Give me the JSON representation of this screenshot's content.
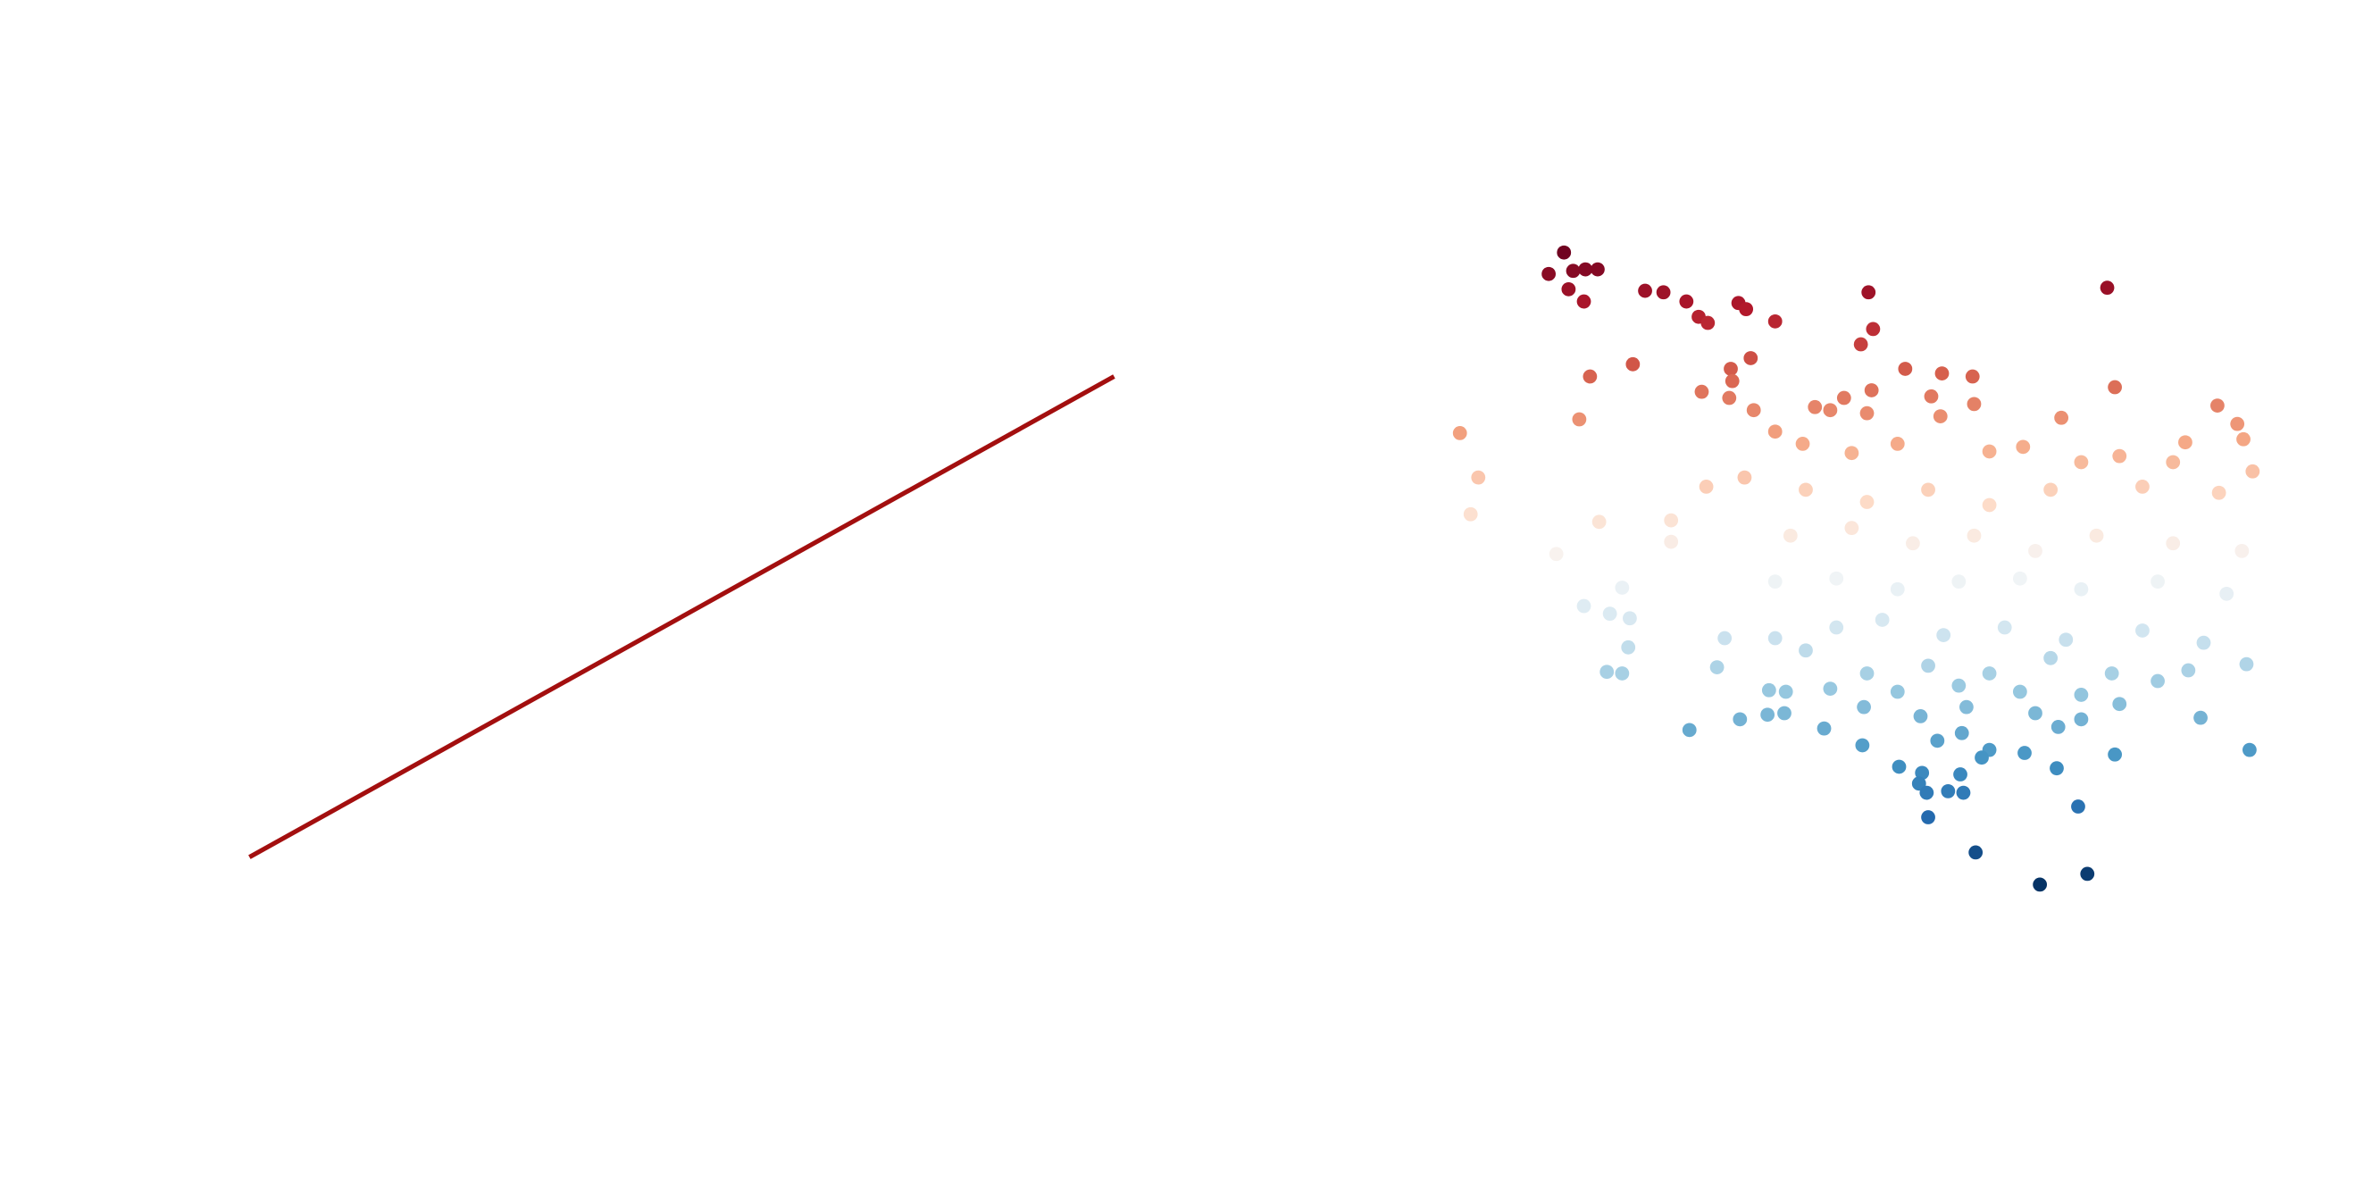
{
  "chart_data": [
    {
      "type": "line",
      "x": [
        0,
        1
      ],
      "series": [
        {
          "color": "#a30f0f",
          "values": [
            0,
            1
          ]
        }
      ],
      "xlim": [
        -0.05,
        1.05
      ],
      "ylim": [
        -0.05,
        1.05
      ]
    },
    {
      "type": "scatter",
      "colormap": "RdBu_r",
      "x": [
        72,
        62,
        78,
        86,
        94,
        75,
        85,
        125,
        137,
        152,
        160,
        166,
        186,
        191,
        210,
        271,
        274,
        266,
        427,
        89,
        117,
        181,
        194,
        182,
        162,
        180,
        295,
        319,
        339,
        432,
        273,
        82,
        4,
        16,
        11,
        67,
        95,
        142,
        142,
        196,
        236,
        246,
        255,
        270,
        312,
        318,
        340,
        397,
        499,
        512,
        516,
        478,
        210,
        228,
        260,
        290,
        350,
        372,
        410,
        435,
        470,
        522,
        165,
        190,
        230,
        270,
        310,
        350,
        390,
        450,
        500,
        220,
        260,
        300,
        340,
        380,
        420,
        470,
        515,
        210,
        250,
        290,
        330,
        370,
        410,
        460,
        505,
        110,
        85,
        102,
        115,
        114,
        100,
        110,
        177,
        210,
        172,
        250,
        280,
        320,
        360,
        400,
        450,
        490,
        230,
        270,
        310,
        350,
        390,
        430,
        480,
        518,
        206,
        217,
        246,
        290,
        330,
        370,
        410,
        460,
        205,
        216,
        187,
        154,
        242,
        268,
        305,
        335,
        380,
        410,
        435,
        488,
        267,
        316,
        332,
        350,
        345,
        373,
        395,
        432,
        520,
        291,
        306,
        331,
        304,
        323,
        333,
        309,
        394,
        310,
        408,
        341,
        383,
        414
      ],
      "y": [
        415,
        401,
        403,
        404,
        404,
        391,
        383,
        390,
        389,
        383,
        373,
        369,
        382,
        378,
        370,
        389,
        365,
        355,
        392,
        334,
        342,
        339,
        346,
        331,
        324,
        320,
        339,
        336,
        334,
        327,
        325,
        306,
        297,
        268,
        244,
        218,
        239,
        240,
        226,
        312,
        314,
        312,
        320,
        310,
        321,
        308,
        316,
        307,
        315,
        303,
        293,
        291,
        298,
        290,
        284,
        290,
        285,
        288,
        278,
        282,
        278,
        272,
        262,
        268,
        260,
        252,
        260,
        250,
        260,
        262,
        258,
        230,
        235,
        225,
        230,
        220,
        230,
        225,
        220,
        200,
        202,
        195,
        200,
        202,
        195,
        200,
        192,
        196,
        184,
        179,
        176,
        157,
        141,
        140,
        163,
        163,
        144,
        170,
        175,
        165,
        170,
        162,
        168,
        160,
        155,
        140,
        145,
        140,
        150,
        140,
        142,
        146,
        129,
        128,
        130,
        128,
        132,
        128,
        126,
        135,
        113,
        114,
        110,
        103,
        104,
        118,
        112,
        118,
        114,
        110,
        120,
        111,
        93,
        96,
        101,
        90,
        85,
        88,
        105,
        87,
        90,
        79,
        75,
        74,
        68,
        63,
        62,
        62,
        78,
        46,
        53,
        23,
        2,
        9
      ],
      "xlim": [
        0,
        530
      ],
      "ylim": [
        0,
        420
      ]
    }
  ]
}
